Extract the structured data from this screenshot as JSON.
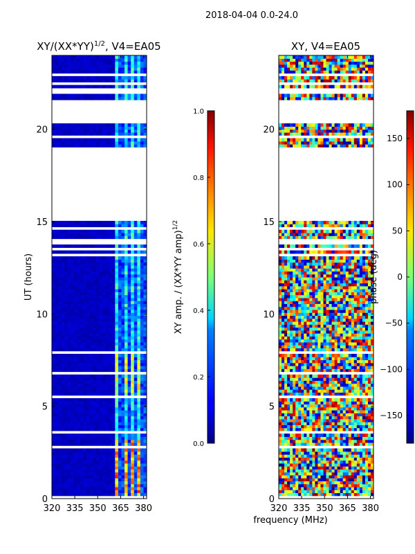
{
  "suptitle": "2018-04-04 0.0-24.0",
  "xlabel_shared": "frequency (MHz)",
  "chart_data": [
    {
      "type": "heatmap",
      "title": "XY/(XX*YY)",
      "title_exp": "1/2",
      "title_tail": ", V4=EA05",
      "ylabel": "UT (hours)",
      "xlim": [
        320,
        382
      ],
      "ylim": [
        0,
        24
      ],
      "xticks": [
        "320",
        "335",
        "350",
        "365",
        "380"
      ],
      "xtick_values": [
        320,
        335,
        350,
        365,
        380
      ],
      "yticks": [
        "0",
        "5",
        "10",
        "15",
        "20"
      ],
      "ytick_values": [
        0,
        5,
        10,
        15,
        20
      ],
      "colorbar": {
        "label": "XY amp. / (XX*YY amp)",
        "label_exp": "1/2",
        "range": [
          0.0,
          1.0
        ],
        "ticks": [
          "0.0",
          "0.2",
          "0.4",
          "0.6",
          "0.8",
          "1.0"
        ],
        "tick_values": [
          0.0,
          0.2,
          0.4,
          0.6,
          0.8,
          1.0
        ]
      },
      "gaps_hours": [
        [
          15.0,
          18.8
        ],
        [
          20.3,
          21.6
        ]
      ],
      "bright_band_mhz": [
        362,
        381
      ],
      "colormap": "jet"
    },
    {
      "type": "heatmap",
      "title": "XY, V4=EA05",
      "ylabel": "",
      "xlim": [
        320,
        382
      ],
      "ylim": [
        0,
        24
      ],
      "xticks": [
        "320",
        "335",
        "350",
        "365",
        "380"
      ],
      "xtick_values": [
        320,
        335,
        350,
        365,
        380
      ],
      "yticks": [
        "0",
        "5",
        "10",
        "15",
        "20"
      ],
      "ytick_values": [
        0,
        5,
        10,
        15,
        20
      ],
      "colorbar": {
        "label": "phase (deg)",
        "range": [
          -180,
          180
        ],
        "ticks": [
          "150",
          "100",
          "50",
          "0",
          "−50",
          "−100",
          "−150"
        ],
        "tick_values": [
          150,
          100,
          50,
          0,
          -50,
          -100,
          -150
        ]
      },
      "gaps_hours": [
        [
          15.0,
          18.8
        ],
        [
          20.3,
          21.6
        ]
      ],
      "colormap": "jet"
    }
  ]
}
